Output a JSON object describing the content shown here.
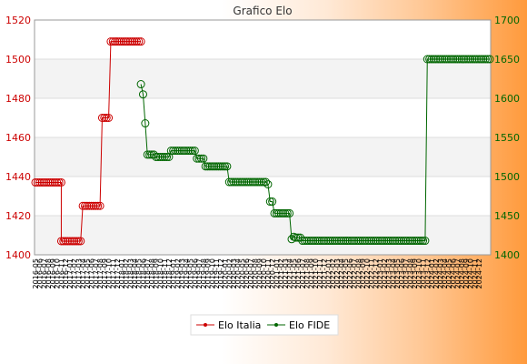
{
  "chart_data": {
    "type": "line",
    "title": "Grafico Elo",
    "y_left": {
      "min": 1400,
      "max": 1520,
      "ticks": [
        1400,
        1420,
        1440,
        1460,
        1480,
        1500,
        1520
      ],
      "color": "#cc0000"
    },
    "y_right": {
      "min": 1400,
      "max": 1700,
      "ticks": [
        1400,
        1450,
        1500,
        1550,
        1600,
        1650,
        1700
      ],
      "color": "#006600"
    },
    "grid": true,
    "legend_position": "bottom",
    "series": [
      {
        "name": "Elo Italia",
        "axis": "left",
        "color": "#cc0000",
        "segments": [
          {
            "from": 0,
            "to": 12,
            "value": 1437
          },
          {
            "from": 12,
            "to": 21,
            "value": 1407
          },
          {
            "from": 22,
            "to": 30,
            "value": 1425
          },
          {
            "from": 31,
            "to": 34,
            "value": 1470
          },
          {
            "from": 35,
            "to": 49,
            "value": 1509
          }
        ]
      },
      {
        "name": "Elo FIDE",
        "axis": "right",
        "color": "#006600",
        "segments": [
          {
            "from": 49,
            "to": 49,
            "value": 1618
          },
          {
            "from": 50,
            "to": 50,
            "value": 1605
          },
          {
            "from": 51,
            "to": 51,
            "value": 1568
          },
          {
            "from": 52,
            "to": 55,
            "value": 1528
          },
          {
            "from": 56,
            "to": 62,
            "value": 1525
          },
          {
            "from": 63,
            "to": 74,
            "value": 1533
          },
          {
            "from": 75,
            "to": 78,
            "value": 1523
          },
          {
            "from": 79,
            "to": 89,
            "value": 1513
          },
          {
            "from": 90,
            "to": 107,
            "value": 1493
          },
          {
            "from": 108,
            "to": 108,
            "value": 1490
          },
          {
            "from": 109,
            "to": 110,
            "value": 1468
          },
          {
            "from": 111,
            "to": 118,
            "value": 1453
          },
          {
            "from": 119,
            "to": 119,
            "value": 1420
          },
          {
            "from": 120,
            "to": 120,
            "value": 1423
          },
          {
            "from": 121,
            "to": 123,
            "value": 1422
          },
          {
            "from": 124,
            "to": 181,
            "value": 1418
          },
          {
            "from": 182,
            "to": 211,
            "value": 1650
          }
        ]
      }
    ],
    "x_count": 212,
    "x_labels": [
      "2016-05",
      "2016-06",
      "2016-07",
      "2016-08",
      "2016-09",
      "2016-10",
      "2016-11",
      "2016-12",
      "2017-01",
      "2017-02",
      "2017-03",
      "2017-04",
      "2017-05",
      "2017-06",
      "2017-07",
      "2017-08",
      "2017-09",
      "2017-10",
      "2017-11",
      "2017-12",
      "2018-01",
      "2018-02",
      "2018-03",
      "2018-04",
      "2018-05",
      "2018-06",
      "2018-07",
      "2018-08",
      "2018-09",
      "2018-10",
      "2018-11",
      "2018-12",
      "2019-01",
      "2019-02",
      "2019-03",
      "2019-04",
      "2019-05",
      "2019-06",
      "2019-07",
      "2019-08",
      "2019-09",
      "2019-10",
      "2019-11",
      "2019-12",
      "2020-01",
      "2020-02",
      "2020-03",
      "2020-04",
      "2020-05",
      "2020-06",
      "2020-07",
      "2020-08",
      "2020-09",
      "2020-10",
      "2020-11",
      "2020-12",
      "2021-01",
      "2021-02",
      "2021-03",
      "2021-04",
      "2021-05",
      "2021-06",
      "2021-07",
      "2021-08",
      "2021-09",
      "2021-10",
      "2021-11",
      "2021-12",
      "2022-01",
      "2022-02",
      "2022-03",
      "2022-04",
      "2022-05",
      "2022-06",
      "2022-07",
      "2022-08",
      "2022-09",
      "2022-10",
      "2022-11",
      "2022-12",
      "2023-01",
      "2023-02",
      "2023-03",
      "2023-04",
      "2023-05",
      "2023-06",
      "2023-07",
      "2023-08",
      "2023-09",
      "2023-10",
      "2023-11",
      "2023-12",
      "2024-01",
      "2024-02",
      "2024-03",
      "2024-04",
      "2024-05",
      "2024-06",
      "2024-07",
      "2024-08",
      "2024-09",
      "2024-10",
      "2024-11",
      "2024-12"
    ]
  }
}
